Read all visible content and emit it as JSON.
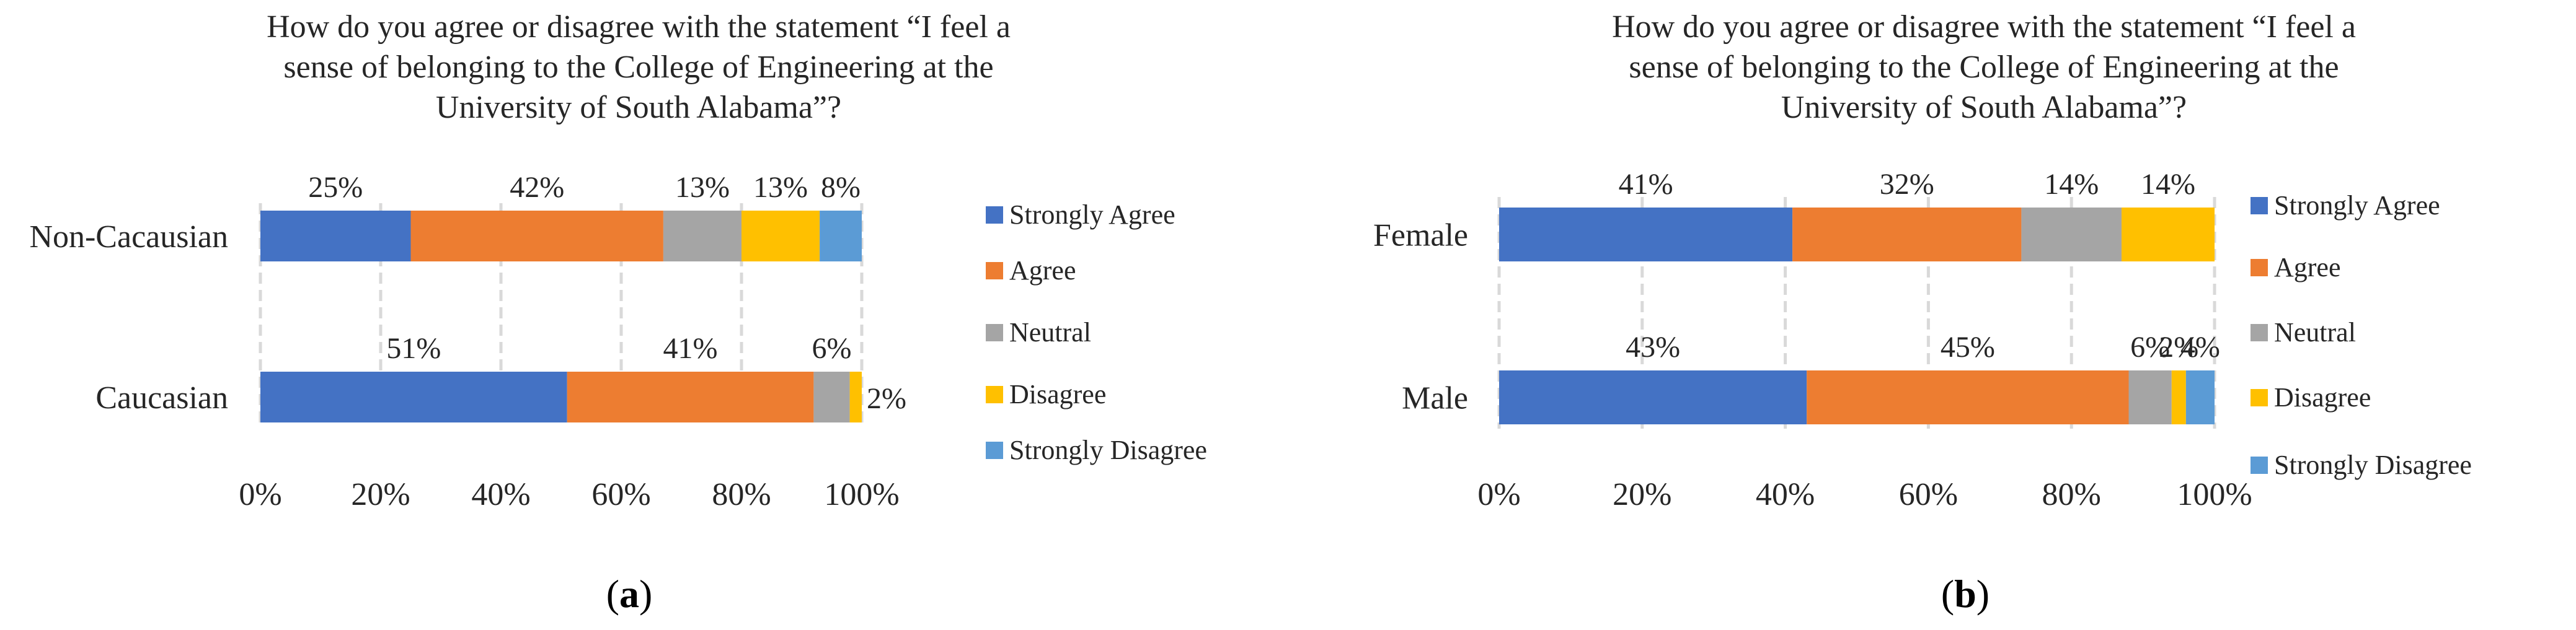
{
  "chart_data": [
    {
      "type": "bar",
      "orientation": "horizontal",
      "stacked": true,
      "panel_label": "a",
      "title": "How do you agree or disagree with the statement “I feel a sense of belonging to the College of Engineering at the University of South Alabama”?",
      "title_lines": [
        "How do you agree or disagree with the statement “I feel a",
        "sense of belonging to the College of Engineering at the",
        "University of South Alabama”?"
      ],
      "categories": [
        "Non-Cacausian",
        "Caucasian"
      ],
      "series": [
        {
          "name": "Strongly Agree",
          "color": "#4472C4",
          "values": [
            25,
            51
          ],
          "labels": [
            "25%",
            "51%"
          ]
        },
        {
          "name": "Agree",
          "color": "#ED7D31",
          "values": [
            42,
            41
          ],
          "labels": [
            "42%",
            "41%"
          ]
        },
        {
          "name": "Neutral",
          "color": "#A5A5A5",
          "values": [
            13,
            6
          ],
          "labels": [
            "13%",
            "6%"
          ]
        },
        {
          "name": "Disagree",
          "color": "#FFC000",
          "values": [
            13,
            2
          ],
          "labels": [
            "13%",
            "2%"
          ]
        },
        {
          "name": "Strongly Disagree",
          "color": "#5B9BD5",
          "values": [
            8,
            0
          ],
          "labels": [
            "8%",
            ""
          ]
        }
      ],
      "xlim": [
        0,
        100
      ],
      "x_ticks": [
        "0%",
        "20%",
        "40%",
        "60%",
        "80%",
        "100%"
      ],
      "grid": "vertical dashed",
      "legend": "right"
    },
    {
      "type": "bar",
      "orientation": "horizontal",
      "stacked": true,
      "panel_label": "b",
      "title": "How do you agree or disagree with the statement “I feel a sense of belonging to the College of Engineering at the University of South Alabama”?",
      "title_lines": [
        "How do you agree or disagree with the statement “I feel a",
        "sense of belonging to the College of Engineering at the",
        "University of South Alabama”?"
      ],
      "categories": [
        "Female",
        "Male"
      ],
      "series": [
        {
          "name": "Strongly Agree",
          "color": "#4472C4",
          "values": [
            41,
            43
          ],
          "labels": [
            "41%",
            "43%"
          ]
        },
        {
          "name": "Agree",
          "color": "#ED7D31",
          "values": [
            32,
            45
          ],
          "labels": [
            "32%",
            "45%"
          ]
        },
        {
          "name": "Neutral",
          "color": "#A5A5A5",
          "values": [
            14,
            6
          ],
          "labels": [
            "14%",
            "6%"
          ]
        },
        {
          "name": "Disagree",
          "color": "#FFC000",
          "values": [
            14,
            2
          ],
          "labels": [
            "14%",
            "2%"
          ]
        },
        {
          "name": "Strongly Disagree",
          "color": "#5B9BD5",
          "values": [
            0,
            4
          ],
          "labels": [
            "",
            "4%"
          ]
        }
      ],
      "xlim": [
        0,
        100
      ],
      "x_ticks": [
        "0%",
        "20%",
        "40%",
        "60%",
        "80%",
        "100%"
      ],
      "grid": "vertical dashed",
      "legend": "right"
    }
  ]
}
